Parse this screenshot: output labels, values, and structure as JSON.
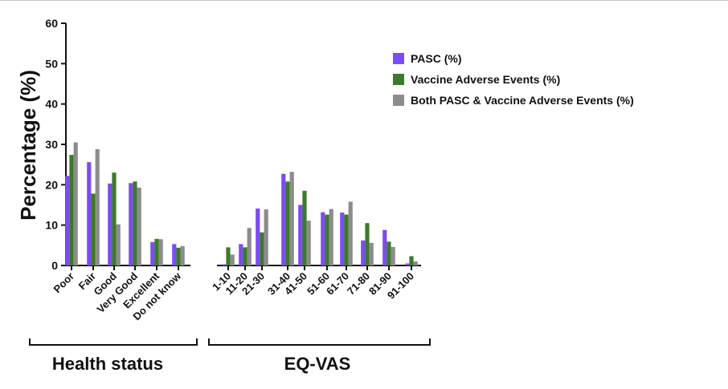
{
  "chart_data": {
    "type": "bar",
    "ylabel": "Percentage (%)",
    "ylim": [
      0,
      60
    ],
    "yticks": [
      0,
      10,
      20,
      30,
      40,
      50,
      60
    ],
    "categories": [
      "Poor",
      "Fair",
      "Good",
      "Very Good",
      "Excellent",
      "Do not know",
      "1-10",
      "11-20",
      "21-30",
      "31-40",
      "41-50",
      "51-60",
      "61-70",
      "71-80",
      "81-90",
      "91-100"
    ],
    "groups": [
      {
        "label": "Health status",
        "categories": [
          "Poor",
          "Fair",
          "Good",
          "Very Good",
          "Excellent",
          "Do not know"
        ]
      },
      {
        "label": "EQ-VAS",
        "categories": [
          "1-10",
          "11-20",
          "21-30",
          "31-40",
          "41-50",
          "51-60",
          "61-70",
          "71-80",
          "81-90",
          "91-100"
        ]
      }
    ],
    "series": [
      {
        "name": "PASC (%)",
        "color": "#7b4cf2",
        "values": [
          22.2,
          25.6,
          20.3,
          20.4,
          5.8,
          5.3,
          0.3,
          5.3,
          14.1,
          22.7,
          15.0,
          13.2,
          13.1,
          6.2,
          8.8,
          0.5
        ]
      },
      {
        "name": "Vaccine Adverse Events (%)",
        "color": "#3c7a2b",
        "values": [
          27.4,
          17.8,
          23.0,
          20.8,
          6.6,
          4.4,
          4.5,
          4.5,
          8.2,
          20.8,
          18.5,
          12.6,
          12.6,
          10.5,
          5.9,
          2.3
        ]
      },
      {
        "name": "Both PASC & Vaccine Adverse Events (%)",
        "color": "#8c8c8c",
        "values": [
          30.5,
          28.8,
          10.2,
          19.3,
          6.5,
          4.8,
          2.7,
          9.3,
          13.9,
          23.2,
          11.1,
          14.0,
          15.8,
          5.6,
          4.6,
          1.0
        ]
      }
    ],
    "legend_position": "top-right",
    "grid": false
  }
}
